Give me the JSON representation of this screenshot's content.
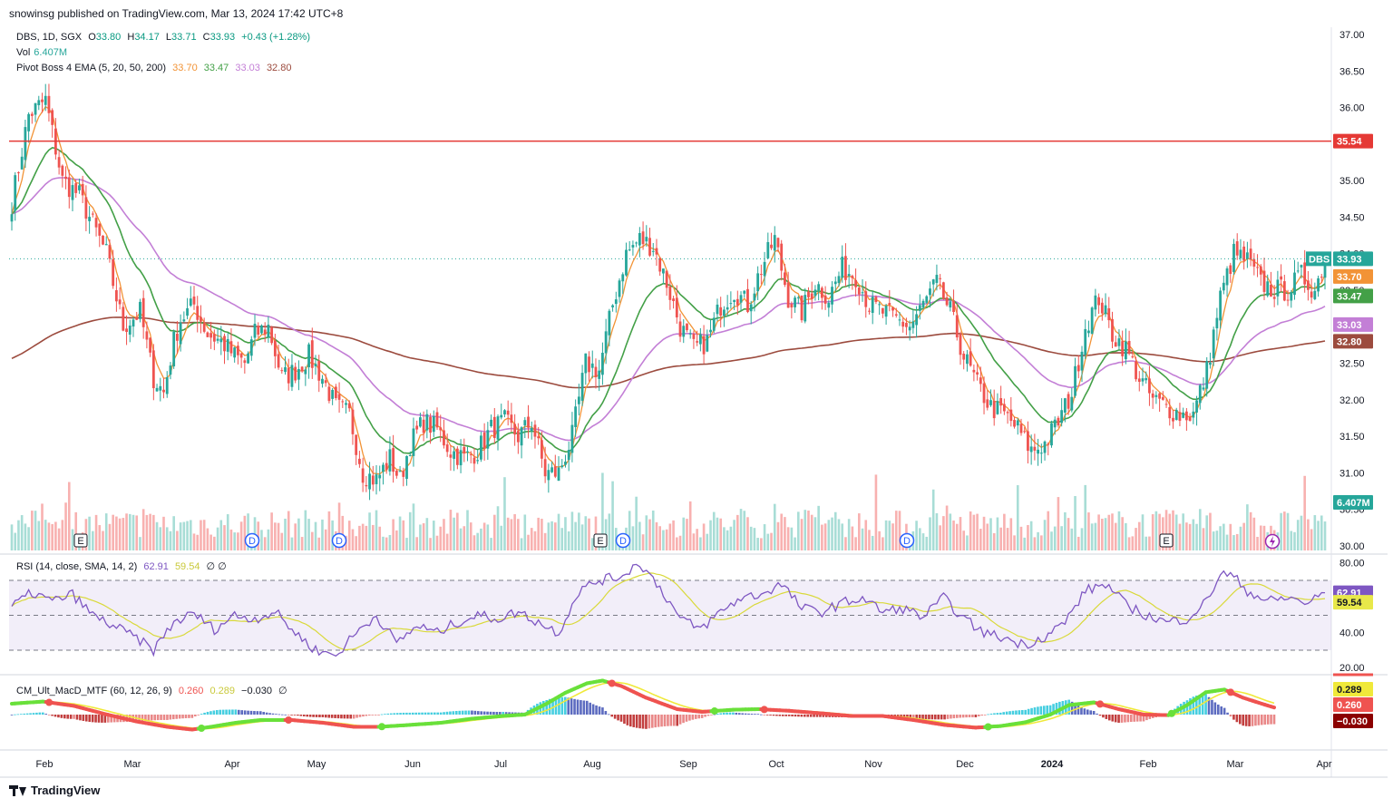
{
  "header": {
    "publisher": "snowinsg published on TradingView.com, Mar 13, 2024 17:42 UTC+8"
  },
  "legend": {
    "symbol": "DBS, 1D, SGX",
    "ohlc": {
      "o_label": "O",
      "o": "33.80",
      "h_label": "H",
      "h": "34.17",
      "l_label": "L",
      "l": "33.71",
      "c_label": "C",
      "c": "33.93",
      "change": "+0.43 (+1.28%)"
    },
    "vol_label": "Vol",
    "vol": "6.407M",
    "ema_label": "Pivot Boss 4 EMA (5, 20, 50, 200)",
    "ema_values": [
      "33.70",
      "33.47",
      "33.03",
      "32.80"
    ],
    "rsi_label": "RSI (14, close, SMA, 14, 2)",
    "rsi_value": "62.91",
    "rsi_sma_value": "59.54",
    "rsi_extra": "∅ ∅",
    "macd_label": "CM_Ult_MacD_MTF (60, 12, 26, 9)",
    "macd_values": [
      "0.260",
      "0.289",
      "−0.030"
    ],
    "macd_extra": "∅"
  },
  "colors": {
    "up": "#26a69a",
    "down": "#ef5350",
    "ema5": "#f29336",
    "ema20": "#43a047",
    "ema50": "#c37fd6",
    "ema200": "#9c4b3e",
    "hline": "#e53935"
  },
  "footer": {
    "brand": "TradingView"
  },
  "chart_data": [
    {
      "type": "candlestick",
      "title": "DBS, 1D, SGX",
      "x_labels": [
        "Feb",
        "Mar",
        "Apr",
        "May",
        "Jun",
        "Jul",
        "Aug",
        "Sep",
        "Oct",
        "Nov",
        "Dec",
        "2024",
        "Feb",
        "Mar",
        "Apr"
      ],
      "y_ticks": [
        "37.00",
        "36.50",
        "36.00",
        "35.50",
        "35.00",
        "34.50",
        "34.00",
        "33.50",
        "33.00",
        "32.50",
        "32.00",
        "31.50",
        "31.00",
        "30.50",
        "30.00"
      ],
      "ylim": [
        29.9,
        37.1
      ],
      "horizontal_line": {
        "value": 35.54,
        "label": "35.54"
      },
      "price_labels": [
        {
          "text": "DBS",
          "value": "33.93"
        },
        {
          "value": "33.70"
        },
        {
          "value": "33.47"
        },
        {
          "value": "33.03"
        },
        {
          "value": "32.80"
        }
      ],
      "volume_label": "6.407M",
      "events": [
        "E",
        "D",
        "D",
        "E",
        "D",
        "D",
        "E"
      ],
      "anchors_close": [
        [
          0,
          34.7
        ],
        [
          5,
          35.9
        ],
        [
          10,
          36.1
        ],
        [
          15,
          35.0
        ],
        [
          20,
          34.8
        ],
        [
          28,
          34.0
        ],
        [
          33,
          33.0
        ],
        [
          38,
          33.2
        ],
        [
          42,
          32.3
        ],
        [
          45,
          32.1
        ],
        [
          48,
          32.8
        ],
        [
          50,
          33.1
        ],
        [
          54,
          33.3
        ],
        [
          58,
          32.9
        ],
        [
          62,
          32.8
        ],
        [
          66,
          32.6
        ],
        [
          69,
          32.5
        ],
        [
          72,
          32.9
        ],
        [
          76,
          33.0
        ],
        [
          80,
          32.3
        ],
        [
          84,
          32.4
        ],
        [
          88,
          32.6
        ],
        [
          92,
          32.3
        ],
        [
          96,
          31.9
        ],
        [
          100,
          31.8
        ],
        [
          104,
          31.0
        ],
        [
          108,
          30.9
        ],
        [
          112,
          31.2
        ],
        [
          115,
          30.9
        ],
        [
          118,
          31.4
        ],
        [
          122,
          31.7
        ],
        [
          126,
          31.6
        ],
        [
          130,
          31.3
        ],
        [
          134,
          31.2
        ],
        [
          138,
          31.3
        ],
        [
          142,
          31.6
        ],
        [
          146,
          31.7
        ],
        [
          150,
          31.5
        ],
        [
          154,
          31.7
        ],
        [
          158,
          31.0
        ],
        [
          162,
          31.0
        ],
        [
          166,
          31.5
        ],
        [
          170,
          32.5
        ],
        [
          174,
          32.4
        ],
        [
          178,
          33.3
        ],
        [
          182,
          34.0
        ],
        [
          186,
          34.2
        ],
        [
          190,
          34.1
        ],
        [
          194,
          33.6
        ],
        [
          198,
          33.0
        ],
        [
          202,
          32.7
        ],
        [
          206,
          32.8
        ],
        [
          210,
          33.3
        ],
        [
          214,
          33.5
        ],
        [
          218,
          33.3
        ],
        [
          222,
          33.8
        ],
        [
          226,
          34.2
        ],
        [
          230,
          33.4
        ],
        [
          234,
          33.2
        ],
        [
          238,
          33.6
        ],
        [
          242,
          33.4
        ],
        [
          246,
          33.8
        ],
        [
          250,
          33.7
        ],
        [
          254,
          33.3
        ],
        [
          258,
          33.2
        ],
        [
          262,
          33.1
        ],
        [
          266,
          33.0
        ],
        [
          270,
          33.3
        ],
        [
          274,
          33.6
        ],
        [
          278,
          33.2
        ],
        [
          282,
          32.6
        ],
        [
          286,
          32.2
        ],
        [
          290,
          31.9
        ],
        [
          294,
          31.8
        ],
        [
          298,
          31.6
        ],
        [
          302,
          31.3
        ],
        [
          306,
          31.4
        ],
        [
          310,
          31.7
        ],
        [
          314,
          32.1
        ],
        [
          318,
          33.0
        ],
        [
          322,
          33.4
        ],
        [
          326,
          32.9
        ],
        [
          330,
          32.7
        ],
        [
          334,
          32.3
        ],
        [
          338,
          32.0
        ],
        [
          342,
          31.9
        ],
        [
          346,
          31.8
        ],
        [
          350,
          31.8
        ],
        [
          354,
          32.4
        ],
        [
          358,
          33.4
        ],
        [
          362,
          34.0
        ],
        [
          366,
          33.9
        ],
        [
          370,
          33.6
        ],
        [
          374,
          33.5
        ],
        [
          378,
          33.5
        ],
        [
          382,
          33.7
        ],
        [
          386,
          33.5
        ],
        [
          389,
          33.93
        ]
      ]
    },
    {
      "type": "line",
      "title": "RSI (14, close, SMA, 14, 2)",
      "y_ticks": [
        "80.00",
        "60.00",
        "40.00",
        "20.00"
      ],
      "ylim": [
        17,
        84
      ],
      "bands": [
        70,
        50,
        30
      ],
      "last_values": {
        "rsi": "62.91",
        "sma": "59.54"
      },
      "anchors_rsi": [
        [
          0,
          55
        ],
        [
          6,
          63
        ],
        [
          12,
          58
        ],
        [
          18,
          62
        ],
        [
          24,
          50
        ],
        [
          30,
          44
        ],
        [
          36,
          38
        ],
        [
          42,
          30
        ],
        [
          48,
          46
        ],
        [
          54,
          51
        ],
        [
          60,
          42
        ],
        [
          66,
          50
        ],
        [
          72,
          48
        ],
        [
          78,
          52
        ],
        [
          84,
          40
        ],
        [
          90,
          30
        ],
        [
          96,
          27
        ],
        [
          102,
          40
        ],
        [
          108,
          50
        ],
        [
          114,
          34
        ],
        [
          120,
          44
        ],
        [
          126,
          40
        ],
        [
          132,
          46
        ],
        [
          138,
          50
        ],
        [
          144,
          48
        ],
        [
          150,
          52
        ],
        [
          156,
          46
        ],
        [
          162,
          40
        ],
        [
          168,
          64
        ],
        [
          174,
          70
        ],
        [
          180,
          72
        ],
        [
          186,
          80
        ],
        [
          192,
          66
        ],
        [
          198,
          48
        ],
        [
          204,
          42
        ],
        [
          210,
          52
        ],
        [
          216,
          60
        ],
        [
          222,
          62
        ],
        [
          228,
          68
        ],
        [
          234,
          54
        ],
        [
          240,
          52
        ],
        [
          246,
          57
        ],
        [
          252,
          60
        ],
        [
          258,
          52
        ],
        [
          264,
          54
        ],
        [
          270,
          49
        ],
        [
          276,
          60
        ],
        [
          282,
          48
        ],
        [
          288,
          40
        ],
        [
          294,
          37
        ],
        [
          300,
          33
        ],
        [
          306,
          38
        ],
        [
          312,
          46
        ],
        [
          318,
          64
        ],
        [
          324,
          68
        ],
        [
          330,
          56
        ],
        [
          336,
          50
        ],
        [
          342,
          46
        ],
        [
          348,
          48
        ],
        [
          354,
          58
        ],
        [
          358,
          74
        ],
        [
          362,
          72
        ],
        [
          366,
          64
        ],
        [
          372,
          58
        ],
        [
          378,
          60
        ],
        [
          384,
          57
        ],
        [
          389,
          63
        ]
      ]
    },
    {
      "type": "line",
      "title": "CM_Ult_MacD_MTF (60, 12, 26, 9)",
      "last_values": {
        "macd": "0.260",
        "signal": "0.289",
        "histogram": "−0.030"
      },
      "anchors_macd": [
        [
          0,
          0.4
        ],
        [
          10,
          0.48
        ],
        [
          20,
          0.32
        ],
        [
          30,
          0.02
        ],
        [
          40,
          -0.25
        ],
        [
          50,
          -0.45
        ],
        [
          58,
          -0.55
        ],
        [
          64,
          -0.45
        ],
        [
          72,
          -0.3
        ],
        [
          80,
          -0.2
        ],
        [
          90,
          -0.2
        ],
        [
          100,
          -0.3
        ],
        [
          110,
          -0.45
        ],
        [
          118,
          -0.45
        ],
        [
          128,
          -0.38
        ],
        [
          138,
          -0.3
        ],
        [
          148,
          -0.15
        ],
        [
          158,
          -0.05
        ],
        [
          165,
          0.0
        ],
        [
          172,
          0.4
        ],
        [
          178,
          0.8
        ],
        [
          185,
          1.15
        ],
        [
          190,
          1.25
        ],
        [
          196,
          1.05
        ],
        [
          204,
          0.62
        ],
        [
          214,
          0.2
        ],
        [
          222,
          0.1
        ],
        [
          232,
          0.18
        ],
        [
          240,
          0.2
        ],
        [
          250,
          0.14
        ],
        [
          260,
          0.05
        ],
        [
          270,
          -0.05
        ],
        [
          280,
          -0.05
        ],
        [
          290,
          -0.2
        ],
        [
          300,
          -0.38
        ],
        [
          310,
          -0.48
        ],
        [
          318,
          -0.42
        ],
        [
          326,
          -0.28
        ],
        [
          334,
          0.0
        ],
        [
          340,
          0.35
        ],
        [
          348,
          0.45
        ],
        [
          356,
          0.2
        ],
        [
          364,
          0.0
        ],
        [
          372,
          -0.02
        ],
        [
          378,
          0.35
        ],
        [
          384,
          0.82
        ],
        [
          390,
          0.92
        ],
        [
          396,
          0.62
        ],
        [
          402,
          0.4
        ],
        [
          406,
          0.26
        ]
      ]
    }
  ]
}
